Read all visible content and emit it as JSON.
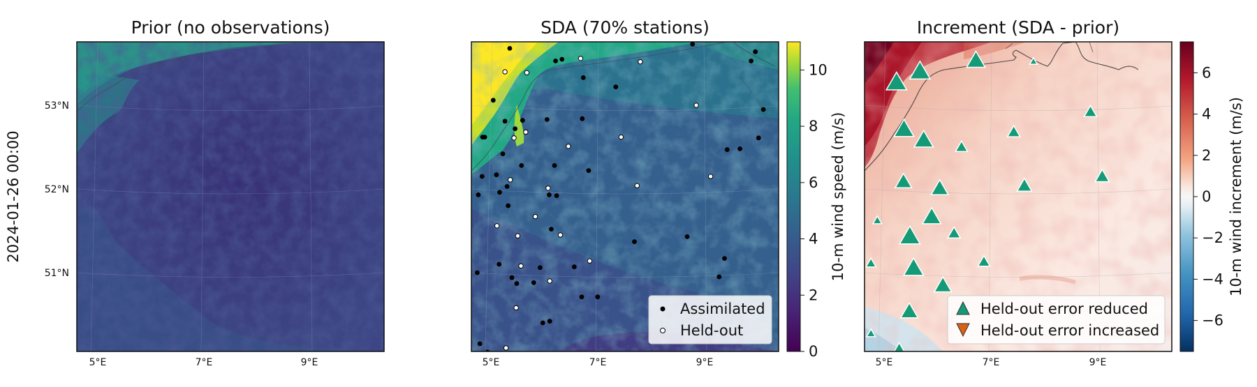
{
  "row_label": "2024-01-26 00:00",
  "chart_data": [
    {
      "type": "heatmap",
      "title": "Prior (no observations)",
      "x_ticks": [
        "5°E",
        "7°E",
        "9°E"
      ],
      "y_ticks": [
        "53°N",
        "52°N",
        "51°N"
      ],
      "field": "10-m wind speed (m/s)",
      "colormap": "viridis",
      "clim": [
        0,
        11
      ]
    },
    {
      "type": "scatter",
      "title": "SDA (70% stations)",
      "x_ticks": [
        "5°E",
        "7°E",
        "9°E"
      ],
      "colormap": "viridis",
      "colorbar": {
        "label": "10-m wind speed (m/s)",
        "ticks": [
          "0",
          "2",
          "4",
          "6",
          "8",
          "10"
        ],
        "range": [
          0,
          11
        ]
      },
      "legend": {
        "position": "lower-right",
        "entries": [
          "Assimilated",
          "Held-out"
        ]
      },
      "assimilated_lonlat": [
        [
          5.35,
          53.68
        ],
        [
          6.21,
          53.53
        ],
        [
          6.33,
          53.55
        ],
        [
          8.78,
          53.73
        ],
        [
          9.88,
          53.53
        ],
        [
          9.96,
          53.64
        ],
        [
          5.04,
          53.06
        ],
        [
          6.73,
          53.33
        ],
        [
          7.34,
          53.22
        ],
        [
          6.05,
          52.83
        ],
        [
          6.71,
          52.84
        ],
        [
          4.84,
          52.62
        ],
        [
          4.88,
          52.62
        ],
        [
          5.26,
          52.81
        ],
        [
          5.45,
          52.72
        ],
        [
          5.59,
          52.82
        ],
        [
          5.22,
          52.42
        ],
        [
          4.83,
          52.15
        ],
        [
          5.1,
          52.17
        ],
        [
          5.57,
          52.28
        ],
        [
          6.19,
          52.28
        ],
        [
          6.83,
          52.22
        ],
        [
          9.43,
          52.47
        ],
        [
          9.67,
          52.48
        ],
        [
          10.02,
          52.61
        ],
        [
          10.11,
          52.95
        ],
        [
          4.76,
          51.93
        ],
        [
          5.16,
          51.96
        ],
        [
          5.3,
          52.03
        ],
        [
          6.09,
          51.93
        ],
        [
          6.23,
          51.92
        ],
        [
          5.32,
          51.8
        ],
        [
          6.13,
          51.52
        ],
        [
          8.68,
          51.43
        ],
        [
          7.69,
          51.37
        ],
        [
          4.74,
          51.0
        ],
        [
          5.15,
          51.1
        ],
        [
          5.92,
          51.06
        ],
        [
          6.56,
          51.07
        ],
        [
          9.38,
          51.17
        ],
        [
          5.48,
          50.87
        ],
        [
          5.8,
          50.88
        ],
        [
          5.39,
          50.94
        ],
        [
          9.28,
          50.95
        ],
        [
          6.7,
          50.71
        ],
        [
          7.0,
          50.71
        ],
        [
          5.97,
          50.4
        ],
        [
          6.1,
          50.42
        ],
        [
          6.89,
          50.03
        ],
        [
          4.79,
          50.15
        ],
        [
          4.93,
          50.05
        ]
      ],
      "heldout_lonlat": [
        [
          5.26,
          53.4
        ],
        [
          5.67,
          53.39
        ],
        [
          6.68,
          53.56
        ],
        [
          7.8,
          53.52
        ],
        [
          8.85,
          53.0
        ],
        [
          5.43,
          52.61
        ],
        [
          5.65,
          52.68
        ],
        [
          6.45,
          52.51
        ],
        [
          7.44,
          52.62
        ],
        [
          5.36,
          52.11
        ],
        [
          6.07,
          52.01
        ],
        [
          7.74,
          52.04
        ],
        [
          9.12,
          52.15
        ],
        [
          5.83,
          51.67
        ],
        [
          5.11,
          51.56
        ],
        [
          5.5,
          51.44
        ],
        [
          6.3,
          51.45
        ],
        [
          5.56,
          51.08
        ],
        [
          6.85,
          51.14
        ],
        [
          6.1,
          50.9
        ],
        [
          5.47,
          50.58
        ],
        [
          5.28,
          50.1
        ]
      ]
    },
    {
      "type": "scatter",
      "title": "Increment (SDA - prior)",
      "x_ticks": [
        "5°E",
        "7°E",
        "9°E"
      ],
      "colormap": "RdBu_r",
      "colorbar": {
        "label": "10-m wind increment (m/s)",
        "ticks": [
          "6",
          "4",
          "2",
          "0",
          "−2",
          "−4",
          "−6"
        ],
        "range": [
          -7.5,
          7.5
        ]
      },
      "legend": {
        "position": "lower-right",
        "entries": [
          "Held-out error reduced",
          "Held-out error increased"
        ]
      },
      "reduced_markers": [
        {
          "lon": 5.23,
          "lat": 53.29,
          "size": 2.3
        },
        {
          "lon": 5.67,
          "lat": 53.42,
          "size": 2.3
        },
        {
          "lon": 6.72,
          "lat": 53.55,
          "size": 2.0
        },
        {
          "lon": 7.8,
          "lat": 53.53,
          "size": 0.3
        },
        {
          "lon": 5.37,
          "lat": 52.73,
          "size": 2.2
        },
        {
          "lon": 5.74,
          "lat": 52.6,
          "size": 2.1
        },
        {
          "lon": 6.45,
          "lat": 52.51,
          "size": 1.0
        },
        {
          "lon": 7.43,
          "lat": 52.69,
          "size": 1.1
        },
        {
          "lon": 8.87,
          "lat": 52.93,
          "size": 1.1
        },
        {
          "lon": 5.36,
          "lat": 52.1,
          "size": 1.7
        },
        {
          "lon": 6.04,
          "lat": 52.02,
          "size": 1.8
        },
        {
          "lon": 7.63,
          "lat": 52.05,
          "size": 1.4
        },
        {
          "lon": 9.09,
          "lat": 52.16,
          "size": 1.3
        },
        {
          "lon": 5.89,
          "lat": 51.68,
          "size": 2.0
        },
        {
          "lon": 4.87,
          "lat": 51.63,
          "size": 0.5
        },
        {
          "lon": 5.48,
          "lat": 51.45,
          "size": 2.3
        },
        {
          "lon": 6.31,
          "lat": 51.48,
          "size": 1.1
        },
        {
          "lon": 5.55,
          "lat": 51.07,
          "size": 2.2
        },
        {
          "lon": 6.87,
          "lat": 51.14,
          "size": 1.0
        },
        {
          "lon": 4.75,
          "lat": 51.12,
          "size": 0.7
        },
        {
          "lon": 6.1,
          "lat": 50.86,
          "size": 1.8
        },
        {
          "lon": 5.47,
          "lat": 50.55,
          "size": 1.8
        },
        {
          "lon": 4.75,
          "lat": 50.28,
          "size": 0.5
        },
        {
          "lon": 5.28,
          "lat": 50.07,
          "size": 1.9
        }
      ],
      "increased_markers": []
    }
  ],
  "colors": {
    "reduced": "#159a77",
    "increased": "#d76215",
    "frame": "#111111"
  }
}
